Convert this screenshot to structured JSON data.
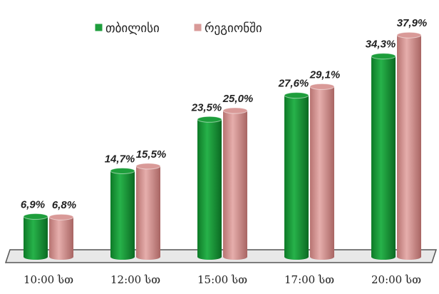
{
  "chart_data": {
    "type": "bar",
    "categories": [
      "10:00 სთ",
      "12:00 სთ",
      "15:00 სთ",
      "17:00 სთ",
      "20:00 სთ"
    ],
    "series": [
      {
        "name": "თბილისი",
        "color": "#1e9e3c",
        "values": [
          6.9,
          14.7,
          23.5,
          27.6,
          34.3
        ],
        "value_labels": [
          "6,9%",
          "14,7%",
          "23,5%",
          "27,6%",
          "34,3%"
        ]
      },
      {
        "name": "რეგიონში",
        "color": "#d99a98",
        "values": [
          6.8,
          15.5,
          25.0,
          29.1,
          37.9
        ],
        "value_labels": [
          "6,8%",
          "15,5%",
          "25,0%",
          "29,1%",
          "37,9%"
        ]
      }
    ]
  }
}
